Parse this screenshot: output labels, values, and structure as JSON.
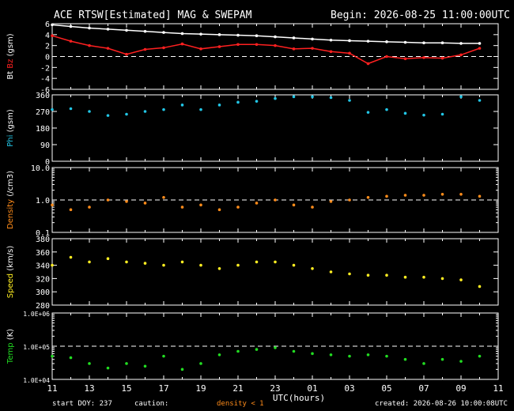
{
  "header": {
    "title": "ACE RTSW[Estimated] MAG & SWEPAM",
    "begin": "Begin: 2026-08-25 11:00:00UTC"
  },
  "footer": {
    "start_doy": "start DOY: 237",
    "caution": "caution:",
    "density_note": "density < 1",
    "created": "created: 2026-08-26 10:00:08UTC"
  },
  "colors": {
    "bt": "#ffffff",
    "bz": "#ff2020",
    "phi": "#22c6e6",
    "density": "#ff8c1a",
    "speed": "#ffee22",
    "temp": "#22dd22",
    "axis": "#ffffff",
    "reference": "#ffffff"
  },
  "chart_data": {
    "type": "scatter",
    "title": "ACE RTSW[Estimated] MAG & SWEPAM",
    "xlabel": "UTC(hours)",
    "x_ticks": [
      "11",
      "13",
      "15",
      "17",
      "19",
      "21",
      "23",
      "01",
      "03",
      "05",
      "07",
      "09",
      "11"
    ],
    "x_hours": [
      0,
      23
    ],
    "x_range": [
      0,
      24
    ],
    "panels": [
      {
        "id": "mag",
        "ylabel_parts": [
          {
            "text": "Bt",
            "color": "#ffffff"
          },
          {
            "text": "Bz",
            "color": "#ff2020"
          },
          {
            "text": "(gsm)",
            "color": "#ffffff"
          }
        ],
        "scale": "linear",
        "ylim": [
          -6,
          6
        ],
        "ticks": [
          "6",
          "4",
          "2",
          "0",
          "-2",
          "-4",
          "-6"
        ],
        "tick_values": [
          6,
          4,
          2,
          0,
          -2,
          -4,
          -6
        ],
        "ref_lines": [
          0
        ],
        "series": [
          {
            "name": "Bt",
            "color": "#ffffff",
            "style": "line",
            "x": [
              0,
              1,
              2,
              3,
              4,
              5,
              6,
              7,
              8,
              9,
              10,
              11,
              12,
              13,
              14,
              15,
              16,
              17,
              18,
              19,
              20,
              21,
              22,
              23
            ],
            "values": [
              5.8,
              5.5,
              5.2,
              5.0,
              4.8,
              4.6,
              4.4,
              4.2,
              4.1,
              4.0,
              3.9,
              3.8,
              3.6,
              3.4,
              3.2,
              3.0,
              2.9,
              2.8,
              2.7,
              2.6,
              2.5,
              2.5,
              2.4,
              2.4
            ]
          },
          {
            "name": "Bz",
            "color": "#ff2020",
            "style": "line",
            "x": [
              0,
              1,
              2,
              3,
              4,
              5,
              6,
              7,
              8,
              9,
              10,
              11,
              12,
              13,
              14,
              15,
              16,
              17,
              18,
              19,
              20,
              21,
              22,
              23
            ],
            "values": [
              3.8,
              2.8,
              2.0,
              1.5,
              0.4,
              1.3,
              1.6,
              2.3,
              1.4,
              1.8,
              2.2,
              2.2,
              2.0,
              1.4,
              1.5,
              0.9,
              0.6,
              -1.3,
              0.0,
              -0.4,
              -0.2,
              -0.3,
              0.3,
              1.5
            ]
          }
        ]
      },
      {
        "id": "phi",
        "ylabel_parts": [
          {
            "text": "Phi",
            "color": "#22c6e6"
          },
          {
            "text": "(gsm)",
            "color": "#ffffff"
          }
        ],
        "scale": "linear",
        "ylim": [
          0,
          360
        ],
        "ticks": [
          "360",
          "270",
          "180",
          "90",
          "0"
        ],
        "tick_values": [
          360,
          270,
          180,
          90,
          0
        ],
        "ref_lines": [],
        "series": [
          {
            "name": "Phi",
            "color": "#22c6e6",
            "style": "scatter",
            "x": [
              0,
              1,
              2,
              3,
              4,
              5,
              6,
              7,
              8,
              9,
              10,
              11,
              12,
              13,
              14,
              15,
              16,
              17,
              18,
              19,
              20,
              21,
              22,
              23
            ],
            "values": [
              280,
              285,
              270,
              248,
              255,
              270,
              280,
              305,
              280,
              305,
              320,
              325,
              340,
              350,
              350,
              345,
              330,
              265,
              280,
              260,
              250,
              255,
              350,
              330
            ]
          }
        ]
      },
      {
        "id": "density",
        "ylabel_parts": [
          {
            "text": "Density",
            "color": "#ff8c1a"
          },
          {
            "text": "(/cm3)",
            "color": "#ffffff"
          }
        ],
        "scale": "log",
        "ylim": [
          0.1,
          10
        ],
        "ticks": [
          "10.0",
          "1.0",
          "0.1"
        ],
        "tick_values": [
          10,
          1,
          0.1
        ],
        "ref_lines": [
          1
        ],
        "series": [
          {
            "name": "Density",
            "color": "#ff8c1a",
            "style": "scatter",
            "x": [
              0,
              1,
              2,
              3,
              4,
              5,
              6,
              7,
              8,
              9,
              10,
              11,
              12,
              13,
              14,
              15,
              16,
              17,
              18,
              19,
              20,
              21,
              22,
              23
            ],
            "values": [
              0.7,
              0.5,
              0.6,
              1.0,
              0.9,
              0.8,
              1.2,
              0.6,
              0.7,
              0.5,
              0.6,
              0.8,
              1.0,
              0.7,
              0.6,
              0.9,
              1.0,
              1.2,
              1.3,
              1.4,
              1.4,
              1.5,
              1.5,
              1.3
            ]
          }
        ]
      },
      {
        "id": "speed",
        "ylabel_parts": [
          {
            "text": "Speed",
            "color": "#ffee22"
          },
          {
            "text": "(km/s)",
            "color": "#ffffff"
          }
        ],
        "scale": "linear",
        "ylim": [
          280,
          380
        ],
        "ticks": [
          "380",
          "360",
          "340",
          "320",
          "300",
          "280"
        ],
        "tick_values": [
          380,
          360,
          340,
          320,
          300,
          280
        ],
        "ref_lines": [],
        "series": [
          {
            "name": "Speed",
            "color": "#ffee22",
            "style": "scatter",
            "x": [
              0,
              1,
              2,
              3,
              4,
              5,
              6,
              7,
              8,
              9,
              10,
              11,
              12,
              13,
              14,
              15,
              16,
              17,
              18,
              19,
              20,
              21,
              22,
              23
            ],
            "values": [
              340,
              352,
              345,
              350,
              345,
              343,
              340,
              345,
              340,
              335,
              340,
              345,
              345,
              340,
              335,
              330,
              327,
              325,
              325,
              322,
              322,
              320,
              318,
              308
            ]
          }
        ]
      },
      {
        "id": "temp",
        "ylabel_parts": [
          {
            "text": "Temp",
            "color": "#22dd22"
          },
          {
            "text": "(K)",
            "color": "#ffffff"
          }
        ],
        "scale": "log",
        "ylim": [
          10000,
          1000000
        ],
        "ticks": [
          "1.0E+06",
          "1.0E+05",
          "1.0E+04"
        ],
        "tick_values": [
          1000000,
          100000,
          10000
        ],
        "ref_lines": [
          100000
        ],
        "series": [
          {
            "name": "Temp",
            "color": "#22dd22",
            "style": "scatter",
            "x": [
              0,
              1,
              2,
              3,
              4,
              5,
              6,
              7,
              8,
              9,
              10,
              11,
              12,
              13,
              14,
              15,
              16,
              17,
              18,
              19,
              20,
              21,
              22,
              23
            ],
            "values": [
              50000,
              45000,
              30000,
              22000,
              30000,
              25000,
              50000,
              20000,
              30000,
              55000,
              70000,
              80000,
              90000,
              70000,
              60000,
              55000,
              50000,
              55000,
              50000,
              40000,
              30000,
              40000,
              35000,
              50000
            ]
          }
        ]
      }
    ]
  }
}
